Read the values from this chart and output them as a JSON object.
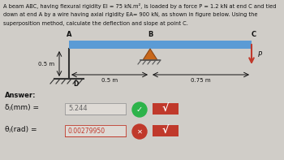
{
  "title_line1": "A beam ABC, having flexural rigidity EI = 75 kN.m², is loaded by a force P = 1.2 kN at end C and tied",
  "title_line2": "down at end A by a wire having axial rigidity EA= 900 kN, as shown in figure below. Using the",
  "title_line3": "superposition method, calculate the deflection and slope at point C.",
  "bg_color": "#d0cdc8",
  "beam_color": "#5b9bd5",
  "wire_color": "#333333",
  "ground_color": "#333333",
  "triangle_color": "#c8671a",
  "text_color": "#111111",
  "answer_label": "Answer:",
  "delta_label": "δⱼ(mm) =",
  "delta_value": "5.244",
  "theta_label": "θⱼ(rad) =",
  "theta_value": "0.00279950",
  "green_color": "#2db34a",
  "red_color": "#c0392b",
  "delta_text_color": "#666666",
  "theta_text_color": "#c0392b",
  "box_bg": "#dedad5",
  "label_A": "A",
  "label_B": "B",
  "label_C": "C",
  "label_D": "D",
  "label_P": "P",
  "dim1": "0.5 m",
  "dim2": "0.5 m",
  "dim3": "0.75 m",
  "wire_label": "0.5 m"
}
